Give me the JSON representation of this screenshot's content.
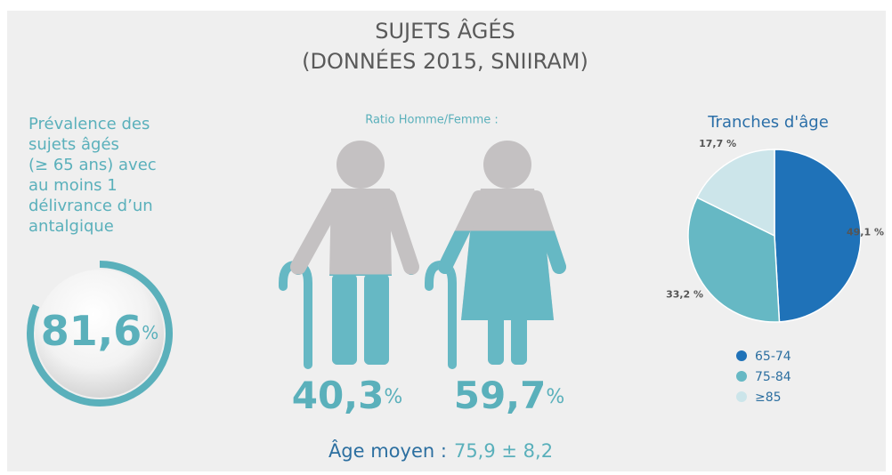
{
  "header": {
    "title": "SUJETS ÂGÉS",
    "subtitle": "(DONNÉES 2015, SNIIRAM)"
  },
  "prevalence": {
    "lines": [
      "Prévalence des",
      "sujets âgés",
      "(≥ 65 ans) avec",
      "au moins 1",
      "délivrance d’un",
      "antalgique"
    ],
    "value": 81.6,
    "value_label": "81,6",
    "unit": "%"
  },
  "ratio": {
    "title": "Ratio Homme/Femme :",
    "men": {
      "value": 40.3,
      "value_label": "40,3",
      "unit": "%"
    },
    "women": {
      "value": 59.7,
      "value_label": "59,7",
      "unit": "%"
    }
  },
  "age": {
    "label": "Âge moyen :",
    "value": "75,9 ± 8,2"
  },
  "chart_data": {
    "type": "pie",
    "title": "Tranches d'âge",
    "categories": [
      "65-74",
      "75-84",
      "≥85"
    ],
    "values": [
      49.1,
      33.2,
      17.7
    ],
    "value_labels": [
      "49,1 %",
      "33,2 %",
      "17,7 %"
    ],
    "colors": [
      "#1f72b8",
      "#66b8c4",
      "#cce5ea"
    ]
  }
}
